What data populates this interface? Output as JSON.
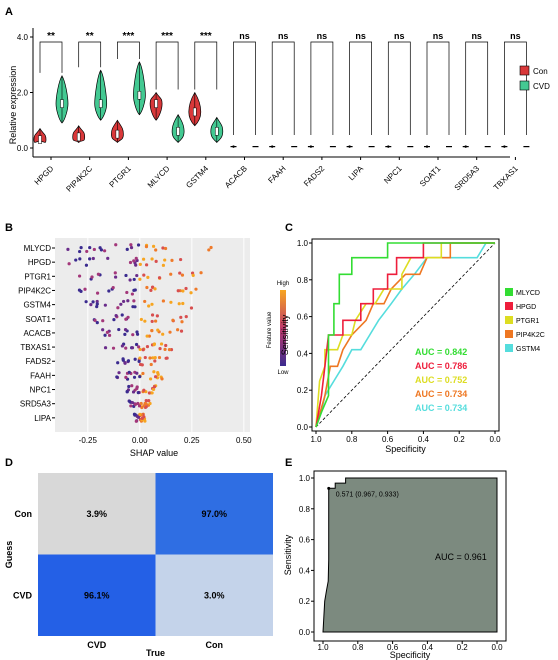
{
  "panels": [
    "A",
    "B",
    "C",
    "D",
    "E"
  ],
  "panel_a": {
    "ylabel": "Relative expression",
    "legend": [
      {
        "label": "Con",
        "color": "#d9383a"
      },
      {
        "label": "CVD",
        "color": "#43c992"
      }
    ],
    "genes": [
      "HPGD",
      "PIP4K2C",
      "PTGR1",
      "MLYCD",
      "GSTM4",
      "ACACB",
      "FAAH",
      "FADS2",
      "LIPA",
      "NPC1",
      "SOAT1",
      "SRD5A3",
      "TBXAS1"
    ],
    "significance": [
      "**",
      "**",
      "***",
      "***",
      "***",
      "ns",
      "ns",
      "ns",
      "ns",
      "ns",
      "ns",
      "ns",
      "ns"
    ],
    "yticks": [
      "0.0",
      "2.0",
      "4.0"
    ]
  },
  "panel_b": {
    "xlabel": "SHAP value",
    "features": [
      "MLYCD",
      "HPGD",
      "PTGR1",
      "PIP4K2C",
      "GSTM4",
      "SOAT1",
      "ACACB",
      "TBXAS1",
      "FADS2",
      "FAAH",
      "NPC1",
      "SRD5A3",
      "LIPA"
    ],
    "xticks": [
      "-0.25",
      "0.00",
      "0.25",
      "0.50"
    ],
    "colorbar": {
      "title": "Feature value",
      "high": "High",
      "low": "Low"
    }
  },
  "chart_data": [
    {
      "type": "line",
      "panel": "C",
      "xlabel": "Specificity",
      "ylabel": "Sensitivity",
      "xticks": [
        "1.0",
        "0.8",
        "0.6",
        "0.4",
        "0.2",
        "0.0"
      ],
      "yticks": [
        "0.0",
        "0.2",
        "0.4",
        "0.6",
        "0.8",
        "1.0"
      ],
      "xlim": [
        1.0,
        0.0
      ],
      "ylim": [
        0.0,
        1.0
      ],
      "legend_position": "right",
      "series": [
        {
          "name": "MLYCD",
          "auc": "AUC = 0.842",
          "color": "#33dd33",
          "points": [
            [
              1,
              0
            ],
            [
              0.97,
              0.08
            ],
            [
              0.93,
              0.17
            ],
            [
              0.93,
              0.5
            ],
            [
              0.9,
              0.5
            ],
            [
              0.9,
              0.67
            ],
            [
              0.87,
              0.67
            ],
            [
              0.87,
              0.83
            ],
            [
              0.8,
              0.83
            ],
            [
              0.8,
              0.92
            ],
            [
              0.6,
              0.92
            ],
            [
              0.6,
              1
            ],
            [
              0,
              1
            ]
          ]
        },
        {
          "name": "HPGD",
          "auc": "AUC = 0.786",
          "color": "#ee1e3c",
          "points": [
            [
              1,
              0
            ],
            [
              0.97,
              0.17
            ],
            [
              0.95,
              0.33
            ],
            [
              0.93,
              0.5
            ],
            [
              0.85,
              0.5
            ],
            [
              0.85,
              0.58
            ],
            [
              0.75,
              0.58
            ],
            [
              0.75,
              0.67
            ],
            [
              0.68,
              0.67
            ],
            [
              0.68,
              0.75
            ],
            [
              0.6,
              0.75
            ],
            [
              0.6,
              0.83
            ],
            [
              0.55,
              0.83
            ],
            [
              0.55,
              0.92
            ],
            [
              0.4,
              0.92
            ],
            [
              0.4,
              1
            ],
            [
              0,
              1
            ]
          ]
        },
        {
          "name": "PTGR1",
          "auc": "AUC = 0.752",
          "color": "#dddd22",
          "points": [
            [
              1,
              0
            ],
            [
              0.98,
              0.25
            ],
            [
              0.95,
              0.33
            ],
            [
              0.95,
              0.42
            ],
            [
              0.88,
              0.42
            ],
            [
              0.85,
              0.5
            ],
            [
              0.8,
              0.5
            ],
            [
              0.78,
              0.58
            ],
            [
              0.72,
              0.67
            ],
            [
              0.67,
              0.67
            ],
            [
              0.62,
              0.75
            ],
            [
              0.52,
              0.75
            ],
            [
              0.52,
              0.83
            ],
            [
              0.47,
              0.92
            ],
            [
              0.3,
              0.92
            ],
            [
              0.3,
              1
            ],
            [
              0,
              1
            ]
          ]
        },
        {
          "name": "PIP4K2C",
          "auc": "AUC = 0.734",
          "color": "#ee7722",
          "points": [
            [
              1,
              0
            ],
            [
              0.95,
              0.17
            ],
            [
              0.92,
              0.33
            ],
            [
              0.88,
              0.33
            ],
            [
              0.85,
              0.42
            ],
            [
              0.8,
              0.5
            ],
            [
              0.72,
              0.58
            ],
            [
              0.68,
              0.67
            ],
            [
              0.62,
              0.67
            ],
            [
              0.58,
              0.75
            ],
            [
              0.5,
              0.83
            ],
            [
              0.42,
              0.83
            ],
            [
              0.38,
              0.92
            ],
            [
              0.25,
              0.92
            ],
            [
              0.25,
              1
            ],
            [
              0,
              1
            ]
          ]
        },
        {
          "name": "GSTM4",
          "auc": "AUC = 0.734",
          "color": "#55dddd",
          "points": [
            [
              1,
              0
            ],
            [
              0.97,
              0.08
            ],
            [
              0.95,
              0.17
            ],
            [
              0.9,
              0.25
            ],
            [
              0.85,
              0.33
            ],
            [
              0.8,
              0.42
            ],
            [
              0.75,
              0.42
            ],
            [
              0.7,
              0.5
            ],
            [
              0.65,
              0.58
            ],
            [
              0.58,
              0.67
            ],
            [
              0.52,
              0.75
            ],
            [
              0.45,
              0.83
            ],
            [
              0.38,
              0.92
            ],
            [
              0.1,
              0.92
            ],
            [
              0.05,
              1
            ],
            [
              0,
              1
            ]
          ]
        }
      ],
      "diagonal": true
    },
    {
      "type": "heatmap",
      "panel": "D",
      "xlabel": "True",
      "ylabel": "Guess",
      "columns": [
        "CVD",
        "Con"
      ],
      "rows": [
        "Con",
        "CVD"
      ],
      "values": [
        [
          "3.9%",
          "97.0%"
        ],
        [
          "96.1%",
          "3.0%"
        ]
      ],
      "colors": [
        [
          "#d8d8d8",
          "#2f6ee3"
        ],
        [
          "#2460e6",
          "#c4d3ea"
        ]
      ]
    },
    {
      "type": "area",
      "panel": "E",
      "xlabel": "Specificity",
      "ylabel": "Sensitivity",
      "xticks": [
        "1.0",
        "0.8",
        "0.6",
        "0.4",
        "0.2",
        "0.0"
      ],
      "yticks": [
        "0.0",
        "0.2",
        "0.4",
        "0.6",
        "0.8",
        "1.0"
      ],
      "xlim": [
        1.0,
        0.0
      ],
      "ylim": [
        0.0,
        1.0
      ],
      "fill_color": "#7c8a7f",
      "annotation": "0.571 (0.967, 0.933)",
      "auc": "AUC = 0.961",
      "threshold_point": [
        0.967,
        0.933
      ],
      "points": [
        [
          1,
          0
        ],
        [
          0.99,
          0.2
        ],
        [
          0.98,
          0.27
        ],
        [
          0.97,
          0.33
        ],
        [
          0.967,
          0.47
        ],
        [
          0.967,
          0.933
        ],
        [
          0.93,
          0.933
        ],
        [
          0.93,
          0.967
        ],
        [
          0.87,
          0.967
        ],
        [
          0.87,
          1
        ],
        [
          0,
          1
        ]
      ]
    }
  ]
}
